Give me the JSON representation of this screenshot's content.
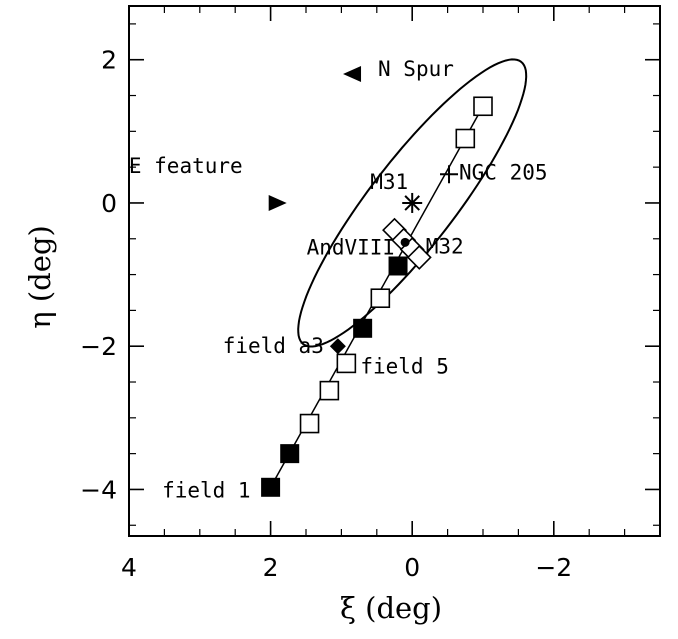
{
  "chart_data": {
    "type": "scatter",
    "xlabel": "ξ (deg)",
    "ylabel": "η (deg)",
    "xlim": [
      4,
      -3.5
    ],
    "ylim": [
      -4.65,
      2.75
    ],
    "x_reversed": true,
    "grid": false,
    "x_ticks": [
      {
        "value": 4,
        "label": "4"
      },
      {
        "value": 2,
        "label": "2"
      },
      {
        "value": 0,
        "label": "0"
      },
      {
        "value": -2,
        "label": "−2"
      }
    ],
    "y_ticks": [
      {
        "value": 2,
        "label": "2"
      },
      {
        "value": 0,
        "label": "0"
      },
      {
        "value": -2,
        "label": "−2"
      },
      {
        "value": -4,
        "label": "−4"
      }
    ],
    "series": [
      {
        "marker": "filled-square",
        "points": [
          [
            2.0,
            -3.97
          ],
          [
            1.73,
            -3.5
          ],
          [
            0.7,
            -1.75
          ],
          [
            0.2,
            -0.88
          ]
        ]
      },
      {
        "marker": "open-square",
        "points": [
          [
            1.45,
            -3.08
          ],
          [
            1.17,
            -2.62
          ],
          [
            0.93,
            -2.24
          ],
          [
            0.45,
            -1.33
          ],
          [
            -0.75,
            0.9
          ],
          [
            -1.0,
            1.35
          ]
        ]
      },
      {
        "marker": "open-diamond",
        "points": [
          [
            0.25,
            -0.38
          ],
          [
            0.12,
            -0.52
          ],
          [
            0.0,
            -0.65
          ],
          [
            -0.1,
            -0.76
          ]
        ]
      }
    ],
    "line": {
      "from": [
        2.0,
        -3.97
      ],
      "to": [
        -1.0,
        1.35
      ]
    },
    "ellipse": {
      "center": [
        0,
        0
      ],
      "semi_major": 2.5,
      "semi_minor": 0.6,
      "major_axis_pa_deg": 38
    },
    "objects": [
      {
        "key": "m31",
        "label": "M31",
        "marker": "asterisk",
        "x": 0,
        "y": 0
      },
      {
        "key": "m32",
        "label": "M32",
        "marker": "none",
        "x": -0.05,
        "y": -0.4
      },
      {
        "key": "andviii",
        "label": "AndVIII",
        "marker": "dot",
        "x": 0.1,
        "y": -0.55
      },
      {
        "key": "ngc205",
        "label": "NGC 205",
        "marker": "plus",
        "x": -0.52,
        "y": 0.4
      },
      {
        "key": "n_spur",
        "label": "N Spur",
        "marker": "triangle-left",
        "x": 0.85,
        "y": 1.8
      },
      {
        "key": "e_feature",
        "label": "E feature",
        "marker": "triangle-right",
        "x": 1.9,
        "y": 0.0
      },
      {
        "key": "field_a3",
        "label": "field a3",
        "marker": "filled-diamond",
        "x": 1.05,
        "y": -2.0
      },
      {
        "key": "field_5",
        "label": "field 5",
        "marker": "none",
        "x": 0.93,
        "y": -2.24
      },
      {
        "key": "field_1",
        "label": "field 1",
        "marker": "none",
        "x": 2.0,
        "y": -3.97
      }
    ]
  }
}
